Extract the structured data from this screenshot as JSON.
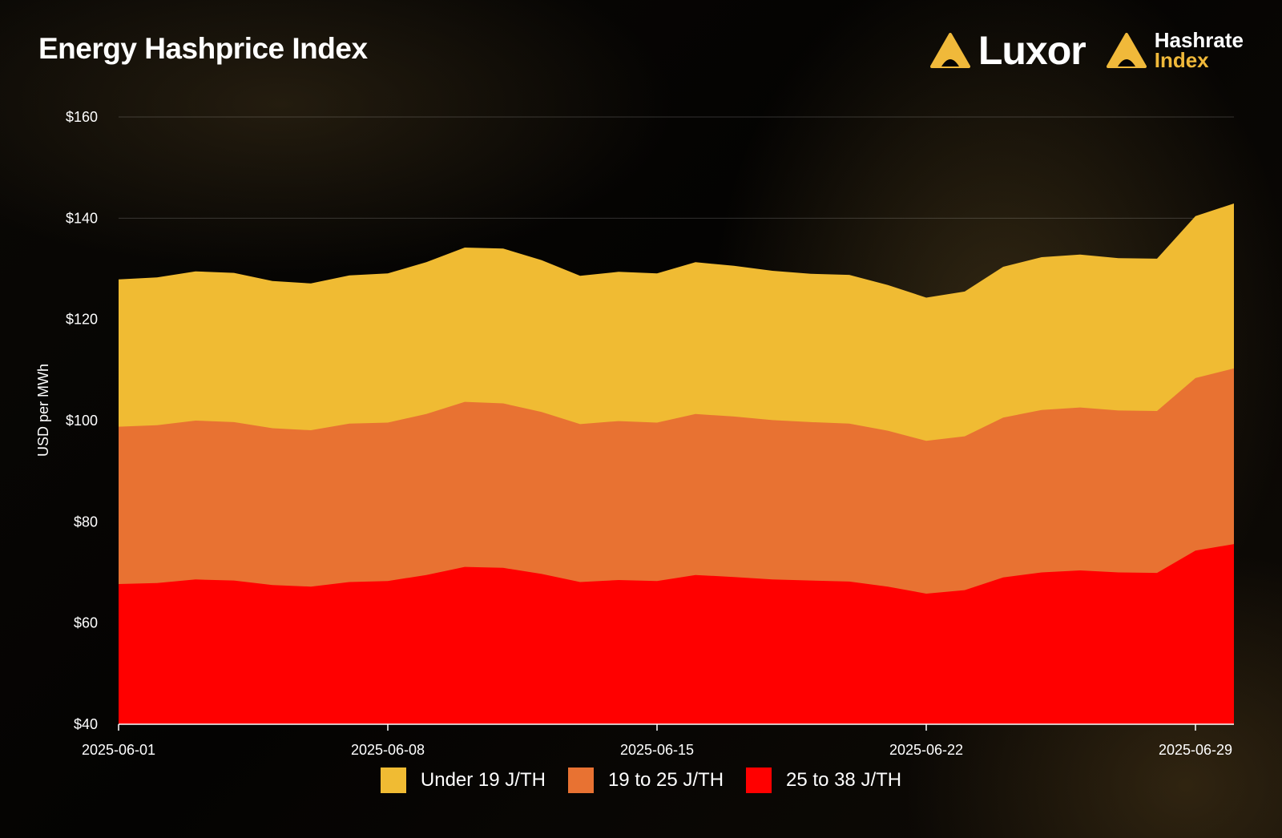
{
  "header": {
    "title": "Energy Hashprice Index",
    "logo_luxor": "Luxor",
    "logo_hashrate_line1": "Hashrate",
    "logo_hashrate_line2": "Index"
  },
  "colors": {
    "accent": "#f0b93a",
    "series": [
      "#f0bb33",
      "#e87232",
      "#ff0000"
    ]
  },
  "chart_data": {
    "type": "area",
    "stacked": false,
    "ylabel": "USD per MWh",
    "ylim": [
      40,
      160
    ],
    "yticks": [
      40,
      60,
      80,
      100,
      120,
      140,
      160
    ],
    "ytick_labels": [
      "$40",
      "$60",
      "$80",
      "$100",
      "$120",
      "$140",
      "$160"
    ],
    "grid": "horizontal",
    "legend_position": "bottom-center",
    "x": [
      "2025-06-01",
      "2025-06-02",
      "2025-06-03",
      "2025-06-04",
      "2025-06-05",
      "2025-06-06",
      "2025-06-07",
      "2025-06-08",
      "2025-06-09",
      "2025-06-10",
      "2025-06-11",
      "2025-06-12",
      "2025-06-13",
      "2025-06-14",
      "2025-06-15",
      "2025-06-16",
      "2025-06-17",
      "2025-06-18",
      "2025-06-19",
      "2025-06-20",
      "2025-06-21",
      "2025-06-22",
      "2025-06-23",
      "2025-06-24",
      "2025-06-25",
      "2025-06-26",
      "2025-06-27",
      "2025-06-28",
      "2025-06-29",
      "2025-06-30"
    ],
    "xticks": [
      "2025-06-01",
      "2025-06-08",
      "2025-06-15",
      "2025-06-22",
      "2025-06-29"
    ],
    "series": [
      {
        "name": "Under 19 J/TH",
        "color": "#f0bb33",
        "values": [
          127.9,
          128.3,
          129.5,
          129.2,
          127.6,
          127.1,
          128.7,
          129.1,
          131.3,
          134.2,
          134.0,
          131.7,
          128.6,
          129.4,
          129.1,
          131.3,
          130.6,
          129.6,
          129.0,
          128.8,
          126.8,
          124.3,
          125.5,
          130.4,
          132.3,
          132.8,
          132.1,
          132.0,
          140.4,
          142.9
        ]
      },
      {
        "name": "19 to 25 J/TH",
        "color": "#e87232",
        "values": [
          98.8,
          99.1,
          100.0,
          99.7,
          98.5,
          98.1,
          99.4,
          99.6,
          101.3,
          103.7,
          103.4,
          101.7,
          99.3,
          99.9,
          99.6,
          101.3,
          100.8,
          100.1,
          99.7,
          99.4,
          98.0,
          96.0,
          96.9,
          100.6,
          102.1,
          102.6,
          102.0,
          101.9,
          108.4,
          110.3
        ]
      },
      {
        "name": "25 to 38 J/TH",
        "color": "#ff0000",
        "values": [
          67.7,
          67.9,
          68.6,
          68.4,
          67.5,
          67.2,
          68.1,
          68.3,
          69.5,
          71.1,
          70.9,
          69.7,
          68.1,
          68.5,
          68.3,
          69.5,
          69.1,
          68.6,
          68.4,
          68.2,
          67.2,
          65.8,
          66.5,
          69.0,
          70.0,
          70.4,
          70.0,
          69.9,
          74.3,
          75.6
        ]
      }
    ]
  }
}
